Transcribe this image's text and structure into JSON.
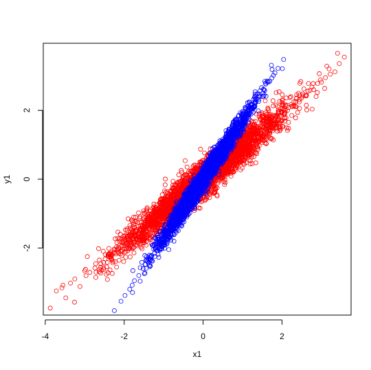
{
  "chart_data": {
    "type": "scatter",
    "title": "",
    "xlabel": "x1",
    "ylabel": "y1",
    "xlim": [
      -4.05,
      3.75
    ],
    "ylim": [
      -3.95,
      3.95
    ],
    "x_ticks": [
      -4,
      -2,
      0,
      2
    ],
    "x_tick_labels": [
      "-4",
      "-2",
      "0",
      "2"
    ],
    "y_ticks": [
      -2,
      0,
      2
    ],
    "y_tick_labels": [
      "-2",
      "0",
      "2"
    ],
    "grid": false,
    "legend": "none",
    "marker": "open-circle",
    "series": [
      {
        "color": "#ff0000",
        "distribution": {
          "x_mean": 0,
          "x_sd": 1,
          "slope": 0.95,
          "residual_sd": 0.26
        },
        "x": [
          -3.72,
          -3.55,
          -3.48,
          -3.36,
          -3.25,
          -3.12,
          -2.98,
          -2.87,
          -2.74,
          -2.63,
          -2.52,
          -2.41,
          -2.33,
          -2.24,
          -2.15,
          -2.06,
          -1.97,
          -1.88,
          -1.79,
          -1.7,
          -1.61,
          -1.52,
          -1.43,
          -1.34,
          -1.25,
          -1.16,
          -1.07,
          -0.98,
          -0.89,
          -0.8,
          -0.71,
          -0.62,
          -0.53,
          -0.44,
          -0.35,
          -0.26,
          -0.17,
          -0.08,
          0.01,
          0.1,
          0.19,
          0.28,
          0.37,
          0.46,
          0.55,
          0.64,
          0.73,
          0.82,
          0.91,
          1.0,
          1.09,
          1.18,
          1.27,
          1.36,
          1.45,
          1.54,
          1.63,
          1.72,
          1.81,
          1.9,
          1.99,
          2.08,
          2.17,
          2.26,
          2.35,
          2.44,
          2.53,
          2.62,
          2.71,
          2.8,
          2.9,
          3.0,
          3.1,
          3.22,
          3.34,
          3.45,
          3.58
        ],
        "y": [
          -3.25,
          -3.08,
          -3.45,
          -3.02,
          -2.9,
          -3.12,
          -2.62,
          -2.71,
          -2.58,
          -2.35,
          -2.42,
          -2.2,
          -2.31,
          -2.05,
          -2.12,
          -1.95,
          -1.88,
          -2.02,
          -1.72,
          -1.65,
          -1.58,
          -1.45,
          -1.51,
          -1.28,
          -1.21,
          -1.12,
          -1.02,
          -0.95,
          -0.86,
          -0.78,
          -0.66,
          -0.6,
          -0.49,
          -0.43,
          -0.31,
          -0.22,
          -0.18,
          -0.04,
          0.05,
          0.07,
          0.22,
          0.25,
          0.38,
          0.42,
          0.51,
          0.62,
          0.68,
          0.79,
          0.85,
          0.96,
          1.03,
          1.12,
          1.2,
          1.31,
          1.36,
          1.49,
          1.53,
          1.66,
          1.71,
          1.8,
          1.92,
          1.95,
          2.08,
          2.11,
          2.25,
          2.31,
          2.42,
          2.44,
          2.58,
          2.6,
          2.78,
          2.82,
          2.95,
          3.05,
          3.12,
          3.36,
          3.55
        ]
      },
      {
        "color": "#0000ff",
        "distribution": {
          "x_mean": 0,
          "x_sd": 0.55,
          "slope": 1.7,
          "residual_sd": 0.16
        },
        "x": [
          -2.25,
          -2.08,
          -1.98,
          -1.86,
          -1.74,
          -1.63,
          -1.52,
          -1.41,
          -1.3,
          -1.2,
          -1.1,
          -1.0,
          -0.9,
          -0.8,
          -0.7,
          -0.6,
          -0.5,
          -0.4,
          -0.3,
          -0.2,
          -0.1,
          0.0,
          0.1,
          0.2,
          0.3,
          0.4,
          0.5,
          0.6,
          0.7,
          0.8,
          0.9,
          1.0,
          1.1,
          1.2,
          1.3,
          1.42,
          1.54,
          1.66,
          1.78,
          1.9,
          2.04
        ],
        "y": [
          -3.82,
          -3.55,
          -3.38,
          -3.2,
          -2.95,
          -2.8,
          -2.6,
          -2.38,
          -2.22,
          -2.05,
          -1.85,
          -1.72,
          -1.52,
          -1.38,
          -1.18,
          -1.03,
          -0.86,
          -0.7,
          -0.5,
          -0.36,
          -0.16,
          0.02,
          0.18,
          0.32,
          0.52,
          0.66,
          0.86,
          1.02,
          1.2,
          1.36,
          1.52,
          1.7,
          1.86,
          2.04,
          2.2,
          2.42,
          2.6,
          2.82,
          3.02,
          3.22,
          3.48
        ]
      }
    ]
  }
}
